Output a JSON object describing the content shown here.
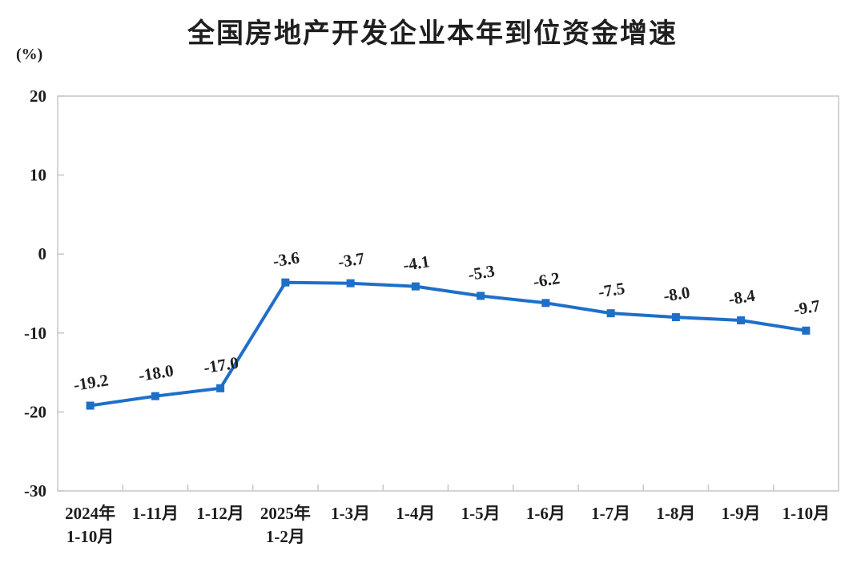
{
  "chart_data": {
    "type": "line",
    "title": "全国房地产开发企业本年到位资金增速",
    "unit_label": "(%)",
    "categories": [
      [
        "2024年",
        "1-10月"
      ],
      [
        "1-11月"
      ],
      [
        "1-12月"
      ],
      [
        "2025年",
        "1-2月"
      ],
      [
        "1-3月"
      ],
      [
        "1-4月"
      ],
      [
        "1-5月"
      ],
      [
        "1-6月"
      ],
      [
        "1-7月"
      ],
      [
        "1-8月"
      ],
      [
        "1-9月"
      ],
      [
        "1-10月"
      ]
    ],
    "values": [
      -19.2,
      -18.0,
      -17.0,
      -3.6,
      -3.7,
      -4.1,
      -5.3,
      -6.2,
      -7.5,
      -8.0,
      -8.4,
      -9.7
    ],
    "data_labels": [
      "-19.2",
      "-18.0",
      "-17.0",
      "-3.6",
      "-3.7",
      "-4.1",
      "-5.3",
      "-6.2",
      "-7.5",
      "-8.0",
      "-8.4",
      "-9.7"
    ],
    "ylim": [
      -30,
      20
    ],
    "y_ticks": [
      20,
      10,
      0,
      -10,
      -20,
      -30
    ],
    "grid": false,
    "legend": "none",
    "marker": "square",
    "colors": {
      "line": "#1E6FC8",
      "marker": "#1E6FC8",
      "data_label": "#1f1f1f",
      "tick_label": "#1c1c1c",
      "axis_border": "#c9c9c9",
      "background": "#ffffff"
    }
  }
}
